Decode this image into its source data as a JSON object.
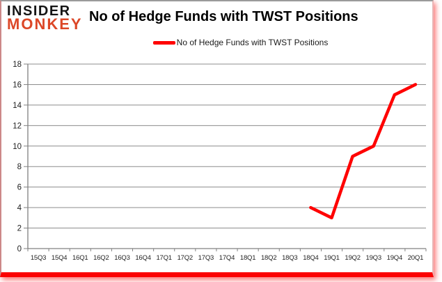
{
  "header": {
    "logo": {
      "line1": "INSIDER",
      "line2": "MONKEY"
    },
    "title": "No of Hedge Funds with TWST Positions"
  },
  "legend": {
    "label": "No of Hedge Funds with TWST Positions",
    "swatch_color": "#ff0000"
  },
  "chart_data": {
    "type": "line",
    "title": "No of Hedge Funds with TWST Positions",
    "categories": [
      "15Q3",
      "15Q4",
      "16Q1",
      "16Q2",
      "16Q3",
      "16Q4",
      "17Q1",
      "17Q2",
      "17Q3",
      "17Q4",
      "18Q1",
      "18Q2",
      "18Q3",
      "18Q4",
      "19Q1",
      "19Q2",
      "19Q3",
      "19Q4",
      "20Q1"
    ],
    "series": [
      {
        "name": "No of Hedge Funds with TWST Positions",
        "color": "#ff0000",
        "values": [
          null,
          null,
          null,
          null,
          null,
          null,
          null,
          null,
          null,
          null,
          null,
          null,
          null,
          4,
          3,
          9,
          10,
          15,
          16
        ]
      }
    ],
    "xlabel": "",
    "ylabel": "",
    "ylim": [
      0,
      18
    ],
    "yticks": [
      0,
      2,
      4,
      6,
      8,
      10,
      12,
      14,
      16,
      18
    ],
    "grid": true,
    "legend_position": "top"
  },
  "colors": {
    "line": "#ff0000",
    "grid": "#8c8c8c",
    "axis": "#808080",
    "tick_label": "#1f1f1f",
    "logo_insider": "#151515",
    "logo_monkey": "#dc4727",
    "frame_bottom": "#fb0202"
  }
}
